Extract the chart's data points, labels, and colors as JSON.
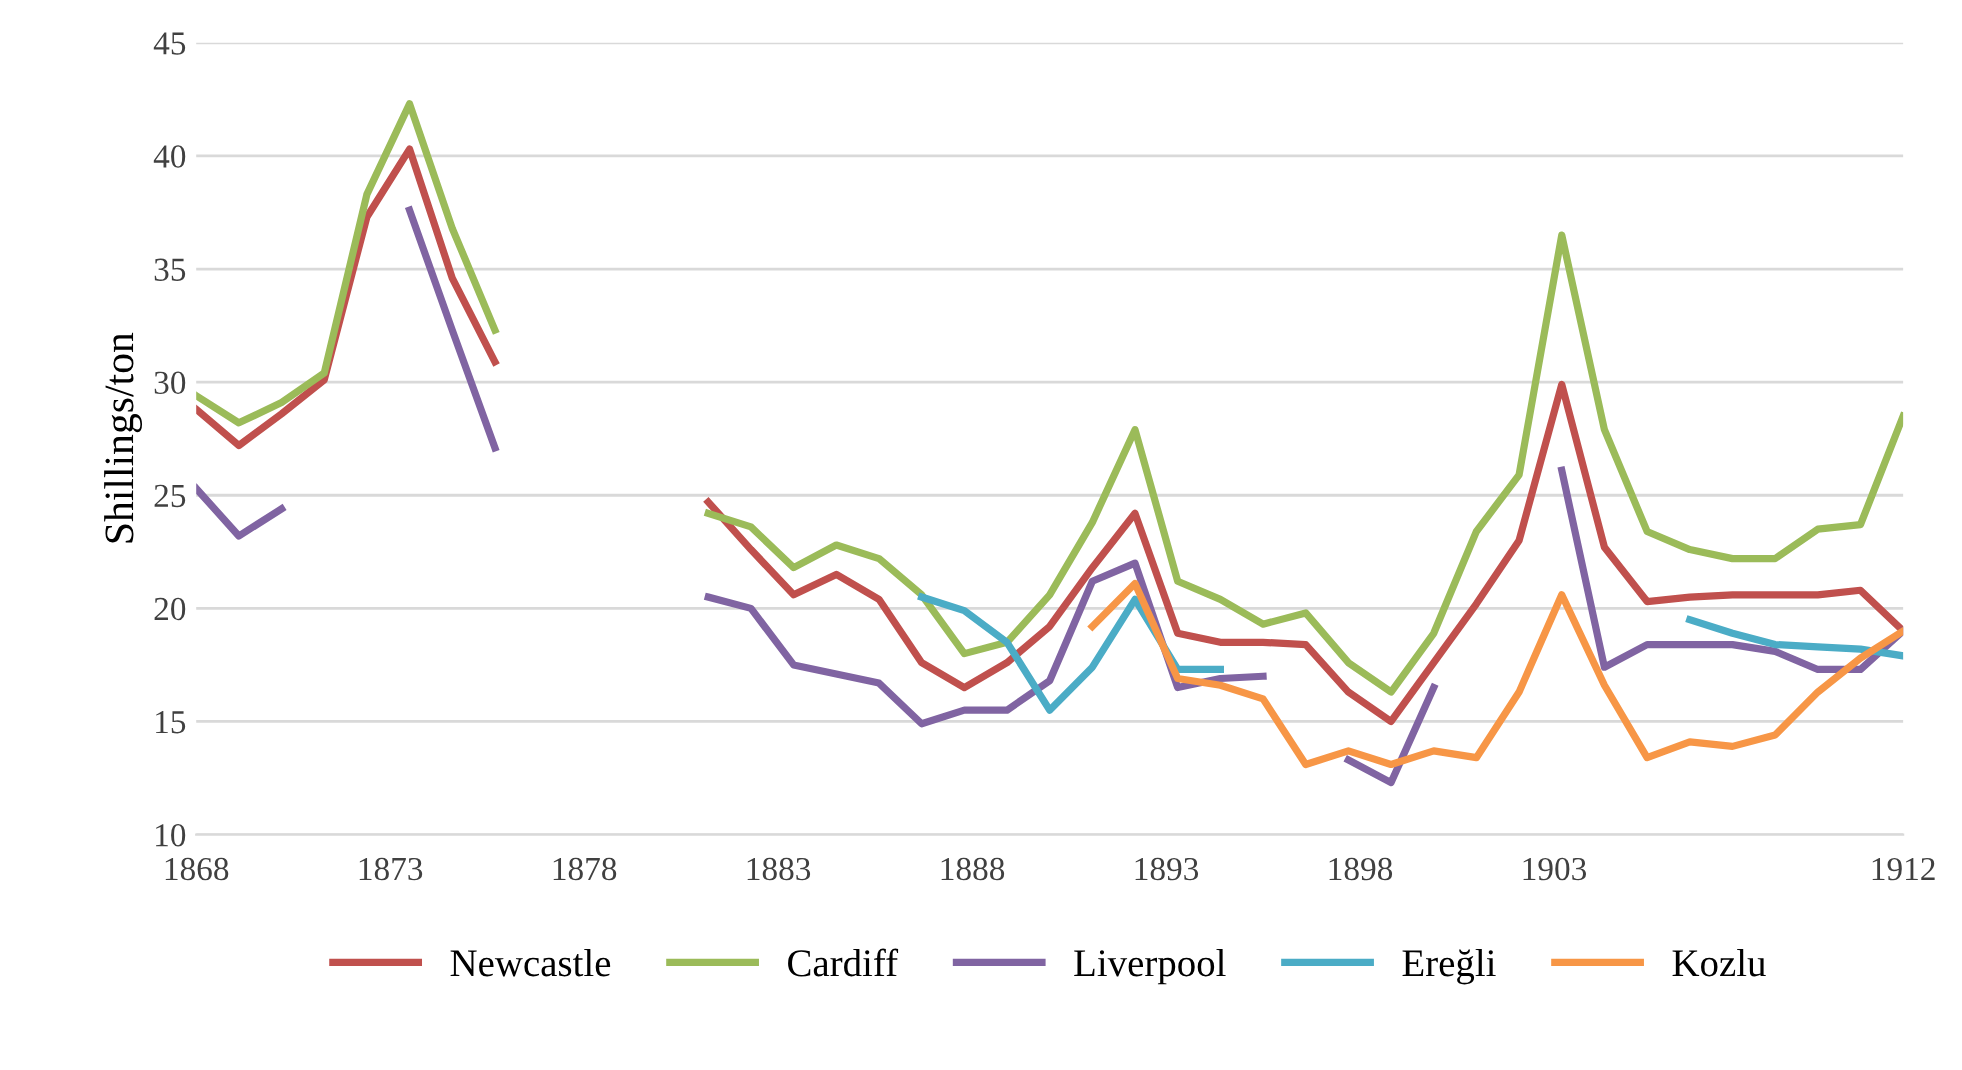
{
  "chart_data": {
    "type": "line",
    "ylabel": "Shillings/ton",
    "x": [
      1868.0,
      1869.1,
      1870.2,
      1871.3,
      1872.4,
      1873.5,
      1874.6,
      1875.7,
      1876.8,
      1877.9,
      1879.0,
      1880.1,
      1881.2,
      1882.3,
      1883.4,
      1884.5,
      1885.6,
      1886.7,
      1887.8,
      1888.9,
      1890.0,
      1891.1,
      1892.2,
      1893.3,
      1894.4,
      1895.5,
      1896.6,
      1897.7,
      1898.8,
      1899.9,
      1901.0,
      1902.1,
      1903.2,
      1904.3,
      1905.4,
      1906.5,
      1907.6,
      1908.7,
      1909.8,
      1910.9,
      1912.0
    ],
    "series": [
      {
        "name": "Newcastle",
        "color": "#c0504d",
        "values": [
          28.8,
          27.2,
          28.6,
          30.1,
          37.3,
          40.3,
          34.6,
          30.9,
          null,
          null,
          null,
          null,
          24.7,
          22.6,
          20.6,
          21.5,
          20.4,
          17.6,
          16.5,
          17.6,
          19.2,
          21.8,
          24.2,
          18.9,
          18.5,
          18.5,
          18.4,
          16.3,
          15.0,
          17.6,
          20.2,
          23.0,
          29.9,
          22.7,
          20.3,
          20.5,
          20.6,
          20.6,
          20.6,
          20.8,
          19.0
        ]
      },
      {
        "name": "Cardiff",
        "color": "#9bbb59",
        "values": [
          29.4,
          28.2,
          29.1,
          30.4,
          38.3,
          42.3,
          36.8,
          32.3,
          null,
          null,
          null,
          null,
          24.2,
          23.6,
          21.8,
          22.8,
          22.2,
          20.6,
          18.0,
          18.5,
          20.6,
          23.8,
          27.9,
          21.2,
          20.4,
          19.3,
          19.8,
          17.6,
          16.3,
          18.9,
          23.4,
          25.9,
          36.5,
          27.9,
          23.4,
          22.6,
          22.2,
          22.2,
          23.5,
          23.7,
          28.5
        ]
      },
      {
        "name": "Liverpool",
        "color": "#8064a2",
        "values": [
          25.3,
          23.2,
          24.4,
          null,
          null,
          37.6,
          32.3,
          27.1,
          null,
          null,
          null,
          null,
          20.5,
          20.0,
          17.5,
          17.1,
          16.7,
          14.9,
          15.5,
          15.5,
          16.8,
          21.2,
          22.0,
          16.5,
          16.9,
          17.0,
          null,
          13.3,
          12.3,
          16.5,
          null,
          null,
          26.1,
          17.4,
          18.4,
          18.4,
          18.4,
          18.1,
          17.3,
          17.3,
          19.0
        ]
      },
      {
        "name": "Ereğli",
        "color": "#4bacc6",
        "values": [
          null,
          null,
          null,
          null,
          null,
          null,
          null,
          null,
          null,
          null,
          null,
          null,
          null,
          null,
          null,
          null,
          null,
          20.5,
          19.9,
          18.5,
          15.5,
          17.4,
          20.4,
          17.3,
          17.3,
          null,
          null,
          null,
          null,
          null,
          null,
          null,
          null,
          null,
          null,
          19.5,
          18.9,
          18.4,
          18.3,
          18.2,
          17.9
        ]
      },
      {
        "name": "Kozlu",
        "color": "#f79646",
        "values": [
          null,
          null,
          null,
          null,
          null,
          null,
          null,
          null,
          null,
          null,
          null,
          null,
          null,
          null,
          null,
          null,
          null,
          null,
          null,
          null,
          null,
          19.2,
          21.1,
          16.9,
          16.6,
          16.0,
          13.1,
          13.7,
          13.1,
          13.7,
          13.4,
          16.3,
          20.6,
          16.6,
          13.4,
          14.1,
          13.9,
          14.4,
          16.3,
          17.8,
          19.0
        ]
      }
    ],
    "xlim": [
      1868,
      1912
    ],
    "xticks": [
      1868,
      1873,
      1878,
      1883,
      1888,
      1893,
      1898,
      1903,
      1912
    ],
    "ylim": [
      10,
      45
    ],
    "yticks": [
      10,
      15,
      20,
      25,
      30,
      35,
      40,
      45
    ],
    "grid": "y",
    "legend": "bottom",
    "marker": "none",
    "line_style": "solid"
  }
}
